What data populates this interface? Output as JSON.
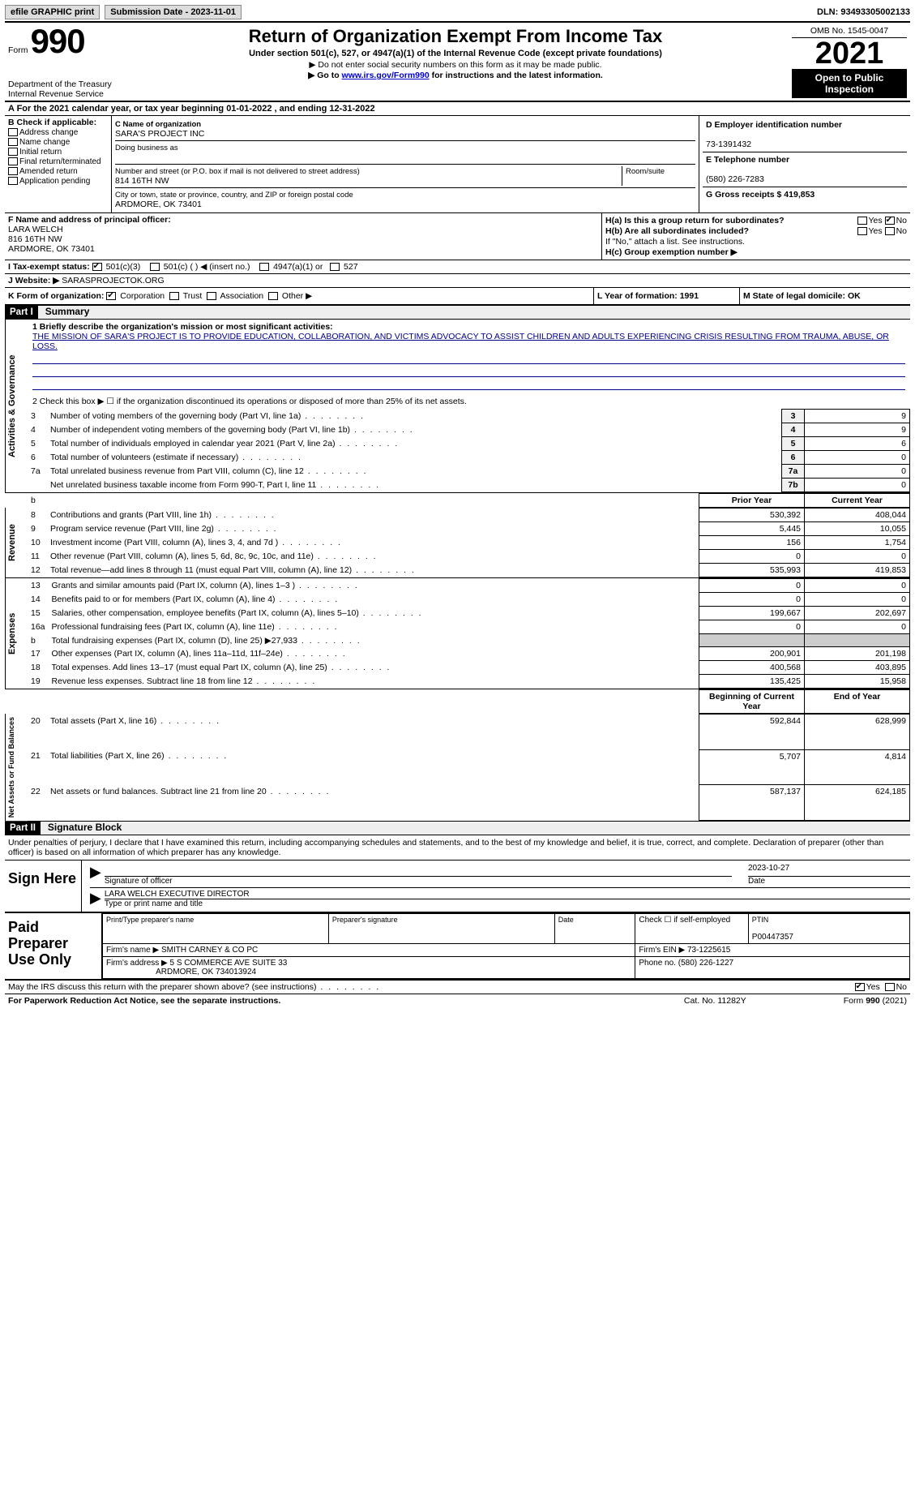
{
  "topbar": {
    "efile": "efile GRAPHIC print",
    "submission_label": "Submission Date - 2023-11-01",
    "dln": "DLN: 93493305002133"
  },
  "header": {
    "form_prefix": "Form",
    "form_num": "990",
    "dept1": "Department of the Treasury",
    "dept2": "Internal Revenue Service",
    "title": "Return of Organization Exempt From Income Tax",
    "sub1": "Under section 501(c), 527, or 4947(a)(1) of the Internal Revenue Code (except private foundations)",
    "sub2": "▶ Do not enter social security numbers on this form as it may be made public.",
    "sub3_pre": "▶ Go to ",
    "sub3_link": "www.irs.gov/Form990",
    "sub3_post": " for instructions and the latest information.",
    "omb": "OMB No. 1545-0047",
    "year": "2021",
    "open": "Open to Public Inspection"
  },
  "line_a": "A For the 2021 calendar year, or tax year beginning 01-01-2022   , and ending 12-31-2022",
  "block_b": {
    "b_label": "B Check if applicable:",
    "items": [
      "Address change",
      "Name change",
      "Initial return",
      "Final return/terminated",
      "Amended return",
      "Application pending"
    ],
    "c_label": "C Name of organization",
    "org_name": "SARA'S PROJECT INC",
    "dba_label": "Doing business as",
    "street_label": "Number and street (or P.O. box if mail is not delivered to street address)",
    "room_label": "Room/suite",
    "street": "814 16TH NW",
    "city_label": "City or town, state or province, country, and ZIP or foreign postal code",
    "city": "ARDMORE, OK  73401",
    "d_label": "D Employer identification number",
    "ein": "73-1391432",
    "e_label": "E Telephone number",
    "phone": "(580) 226-7283",
    "g_label": "G Gross receipts $ 419,853"
  },
  "block_fh": {
    "f_label": "F Name and address of principal officer:",
    "officer_name": "LARA WELCH",
    "officer_street": "816 16TH NW",
    "officer_city": "ARDMORE, OK  73401",
    "ha": "H(a)  Is this a group return for subordinates?",
    "hb": "H(b)  Are all subordinates included?",
    "hb_note": "If \"No,\" attach a list. See instructions.",
    "hc": "H(c)  Group exemption number ▶",
    "yes": "Yes",
    "no": "No"
  },
  "line_i": {
    "label": "I   Tax-exempt status:",
    "opts": [
      "501(c)(3)",
      "501(c) (  ) ◀ (insert no.)",
      "4947(a)(1) or",
      "527"
    ]
  },
  "line_j": {
    "label": "J   Website: ▶",
    "val": "  SARASPROJECTOK.ORG"
  },
  "line_k": {
    "label": "K Form of organization:",
    "opts": [
      "Corporation",
      "Trust",
      "Association",
      "Other ▶"
    ],
    "l_label": "L Year of formation: 1991",
    "m_label": "M State of legal domicile: OK"
  },
  "part1": {
    "hdr": "Part I",
    "title": "Summary"
  },
  "summary": {
    "tabs": [
      "Activities & Governance",
      "Revenue",
      "Expenses",
      "Net Assets or Fund Balances"
    ],
    "q1_label": "1   Briefly describe the organization's mission or most significant activities:",
    "mission": "THE MISSION OF SARA'S PROJECT IS TO PROVIDE EDUCATION, COLLABORATION, AND VICTIMS ADVOCACY TO ASSIST CHILDREN AND ADULTS EXPERIENCING CRISIS RESULTING FROM TRAUMA, ABUSE, OR LOSS.",
    "q2": "2    Check this box ▶ ☐  if the organization discontinued its operations or disposed of more than 25% of its net assets.",
    "gov_rows": [
      {
        "n": "3",
        "t": "Number of voting members of the governing body (Part VI, line 1a)",
        "k": "3",
        "v": "9"
      },
      {
        "n": "4",
        "t": "Number of independent voting members of the governing body (Part VI, line 1b)",
        "k": "4",
        "v": "9"
      },
      {
        "n": "5",
        "t": "Total number of individuals employed in calendar year 2021 (Part V, line 2a)",
        "k": "5",
        "v": "6"
      },
      {
        "n": "6",
        "t": "Total number of volunteers (estimate if necessary)",
        "k": "6",
        "v": "0"
      },
      {
        "n": "7a",
        "t": "Total unrelated business revenue from Part VIII, column (C), line 12",
        "k": "7a",
        "v": "0"
      },
      {
        "n": "",
        "t": "Net unrelated business taxable income from Form 990-T, Part I, line 11",
        "k": "7b",
        "v": "0"
      }
    ],
    "prior_hdr": "Prior Year",
    "current_hdr": "Current Year",
    "rev_rows": [
      {
        "n": "8",
        "t": "Contributions and grants (Part VIII, line 1h)",
        "p": "530,392",
        "c": "408,044"
      },
      {
        "n": "9",
        "t": "Program service revenue (Part VIII, line 2g)",
        "p": "5,445",
        "c": "10,055"
      },
      {
        "n": "10",
        "t": "Investment income (Part VIII, column (A), lines 3, 4, and 7d )",
        "p": "156",
        "c": "1,754"
      },
      {
        "n": "11",
        "t": "Other revenue (Part VIII, column (A), lines 5, 6d, 8c, 9c, 10c, and 11e)",
        "p": "0",
        "c": "0"
      },
      {
        "n": "12",
        "t": "Total revenue—add lines 8 through 11 (must equal Part VIII, column (A), line 12)",
        "p": "535,993",
        "c": "419,853"
      }
    ],
    "exp_rows": [
      {
        "n": "13",
        "t": "Grants and similar amounts paid (Part IX, column (A), lines 1–3 )",
        "p": "0",
        "c": "0"
      },
      {
        "n": "14",
        "t": "Benefits paid to or for members (Part IX, column (A), line 4)",
        "p": "0",
        "c": "0"
      },
      {
        "n": "15",
        "t": "Salaries, other compensation, employee benefits (Part IX, column (A), lines 5–10)",
        "p": "199,667",
        "c": "202,697"
      },
      {
        "n": "16a",
        "t": "Professional fundraising fees (Part IX, column (A), line 11e)",
        "p": "0",
        "c": "0"
      },
      {
        "n": "b",
        "t": "Total fundraising expenses (Part IX, column (D), line 25) ▶27,933",
        "p": "",
        "c": "",
        "shade": true
      },
      {
        "n": "17",
        "t": "Other expenses (Part IX, column (A), lines 11a–11d, 11f–24e)",
        "p": "200,901",
        "c": "201,198"
      },
      {
        "n": "18",
        "t": "Total expenses. Add lines 13–17 (must equal Part IX, column (A), line 25)",
        "p": "400,568",
        "c": "403,895"
      },
      {
        "n": "19",
        "t": "Revenue less expenses. Subtract line 18 from line 12",
        "p": "135,425",
        "c": "15,958"
      }
    ],
    "na_hdr1": "Beginning of Current Year",
    "na_hdr2": "End of Year",
    "na_rows": [
      {
        "n": "20",
        "t": "Total assets (Part X, line 16)",
        "p": "592,844",
        "c": "628,999"
      },
      {
        "n": "21",
        "t": "Total liabilities (Part X, line 26)",
        "p": "5,707",
        "c": "4,814"
      },
      {
        "n": "22",
        "t": "Net assets or fund balances. Subtract line 21 from line 20",
        "p": "587,137",
        "c": "624,185"
      }
    ]
  },
  "part2": {
    "hdr": "Part II",
    "title": "Signature Block",
    "para": "Under penalties of perjury, I declare that I have examined this return, including accompanying schedules and statements, and to the best of my knowledge and belief, it is true, correct, and complete. Declaration of preparer (other than officer) is based on all information of which preparer has any knowledge.",
    "sign_here": "Sign Here",
    "sig_label": "Signature of officer",
    "date_label": "Date",
    "sig_date": "2023-10-27",
    "name_title": "LARA WELCH  EXECUTIVE DIRECTOR",
    "type_label": "Type or print name and title"
  },
  "prep": {
    "label": "Paid Preparer Use Only",
    "print_name_lbl": "Print/Type preparer's name",
    "sig_lbl": "Preparer's signature",
    "date_lbl": "Date",
    "self_emp": "Check ☐ if self-employed",
    "ptin_lbl": "PTIN",
    "ptin": "P00447357",
    "firm_name_lbl": "Firm's name    ▶",
    "firm_name": "SMITH CARNEY & CO PC",
    "firm_ein_lbl": "Firm's EIN ▶",
    "firm_ein": "73-1225615",
    "firm_addr_lbl": "Firm's address ▶",
    "firm_addr1": "5 S COMMERCE AVE SUITE 33",
    "firm_addr2": "ARDMORE, OK  734013924",
    "phone_lbl": "Phone no.",
    "phone": "(580) 226-1227"
  },
  "bottom": {
    "discuss": "May the IRS discuss this return with the preparer shown above? (see instructions)",
    "yes": "Yes",
    "no": "No"
  },
  "footer": {
    "pra": "For Paperwork Reduction Act Notice, see the separate instructions.",
    "cat": "Cat. No. 11282Y",
    "form": "Form 990 (2021)"
  },
  "colors": {
    "link": "#0000cc",
    "header_bg": "#000000"
  }
}
